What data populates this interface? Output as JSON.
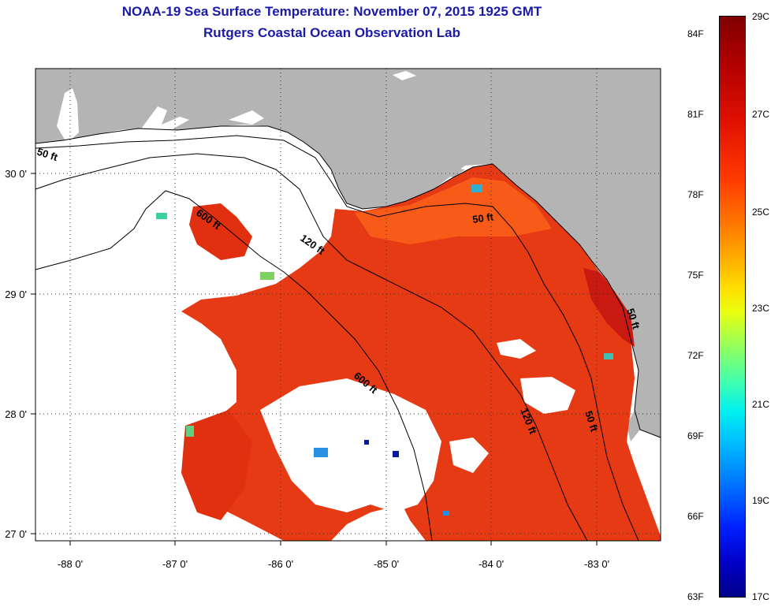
{
  "title": "NOAA-19 Sea Surface Temperature:  November 07, 2015 1925 GMT",
  "subtitle": "Rutgers Coastal Ocean Observation Lab",
  "lon_labels": [
    "-88 0'",
    "-87 0'",
    "-86 0'",
    "-85 0'",
    "-84 0'",
    "-83 0'"
  ],
  "lat_labels": [
    "30 0'",
    "29 0'",
    "28 0'",
    "27 0'"
  ],
  "contours": [
    "50 ft",
    "600 ft",
    "120 ft",
    "50 ft",
    "600 ft",
    "120 ft",
    "50 ft",
    "50 ft"
  ],
  "colorbar": {
    "fahrenheit": [
      "84F",
      "81F",
      "78F",
      "75F",
      "72F",
      "69F",
      "66F",
      "63F"
    ],
    "celsius": [
      "29C",
      "27C",
      "25C",
      "23C",
      "21C",
      "19C",
      "17C"
    ]
  },
  "colors": {
    "title": "#1a1aa6",
    "land": "#b4b4b4",
    "water_warm": "#e83a10",
    "cloud": "#ffffff"
  }
}
